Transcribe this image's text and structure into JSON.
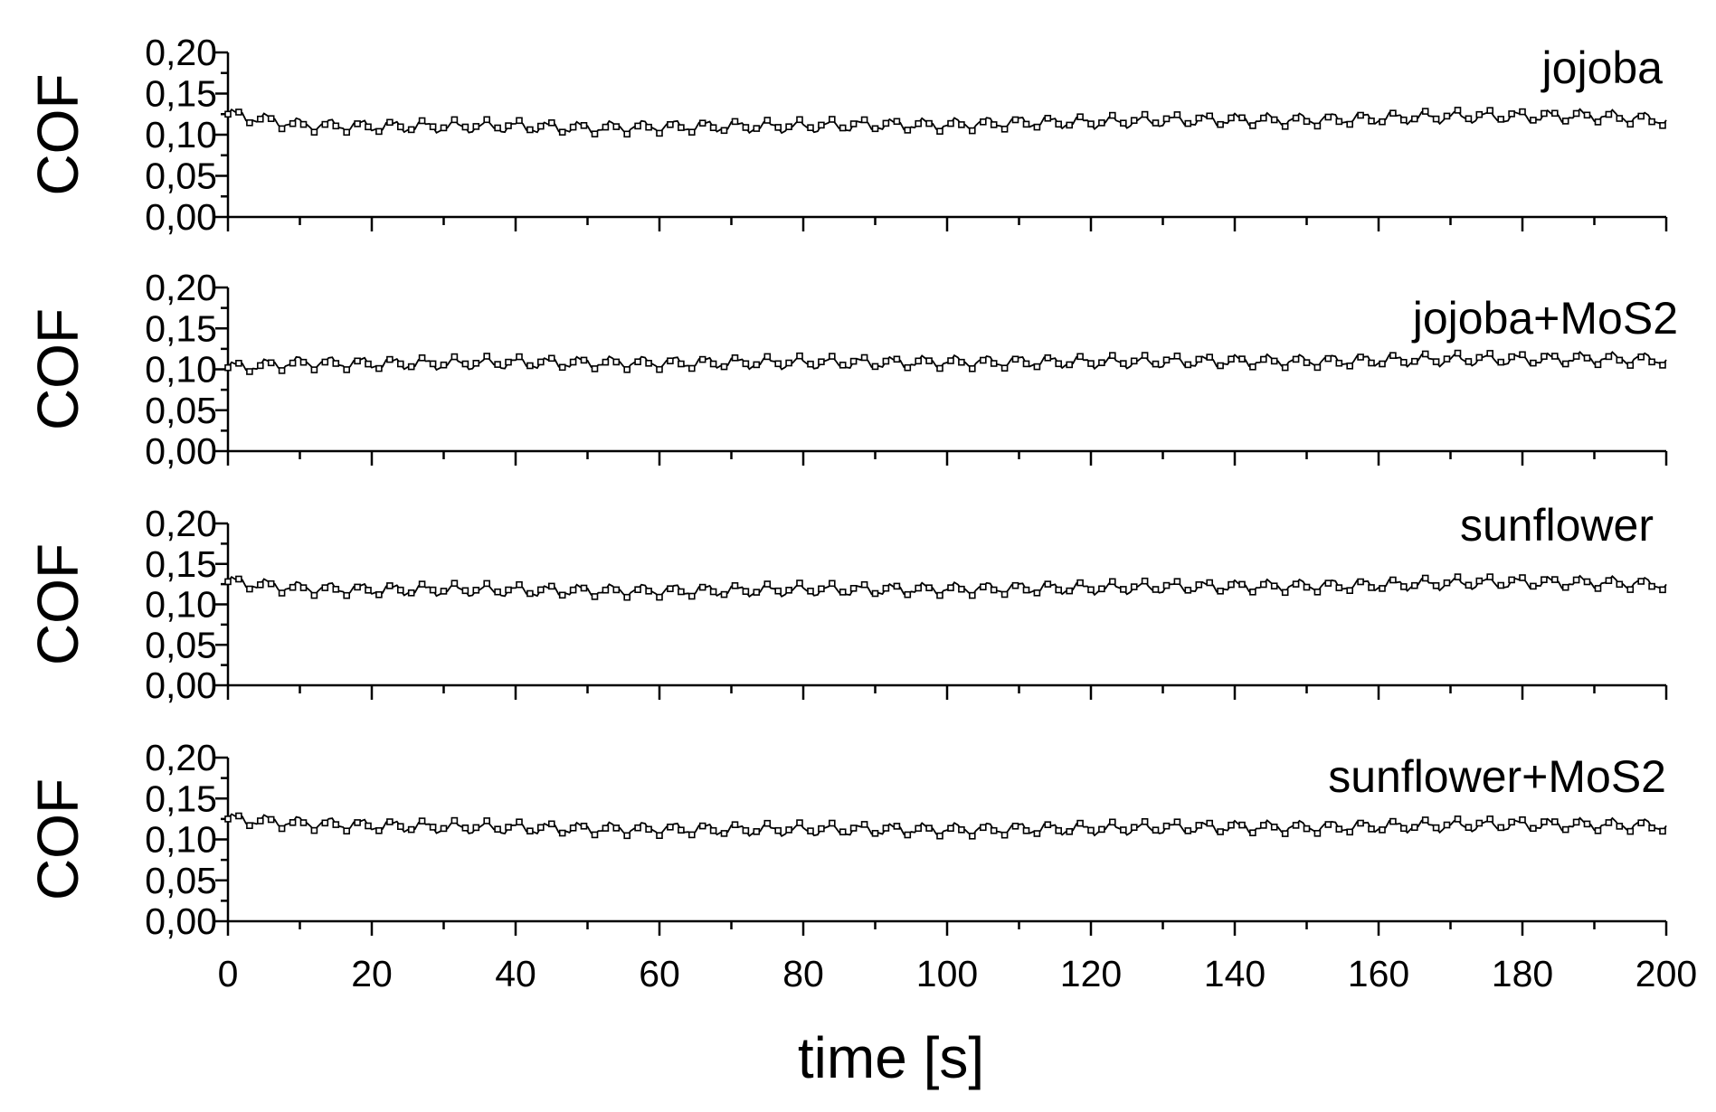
{
  "chart_data": [
    {
      "type": "line",
      "title": "jojoba",
      "ylabel": "COF",
      "xlabel": "",
      "xlim": [
        0,
        200
      ],
      "ylim": [
        0.0,
        0.2
      ],
      "yticks": [
        "0,00",
        "0,05",
        "0,10",
        "0,15",
        "0,20"
      ],
      "series": [
        {
          "name": "jojoba",
          "x": [
            0,
            10,
            20,
            30,
            40,
            50,
            60,
            70,
            80,
            90,
            100,
            110,
            120,
            130,
            140,
            150,
            160,
            170,
            180,
            190,
            200
          ],
          "y": [
            0.125,
            0.112,
            0.11,
            0.11,
            0.11,
            0.108,
            0.11,
            0.11,
            0.11,
            0.112,
            0.112,
            0.115,
            0.115,
            0.117,
            0.118,
            0.118,
            0.12,
            0.122,
            0.122,
            0.123,
            0.118
          ]
        }
      ]
    },
    {
      "type": "line",
      "title": "jojoba+MoS2",
      "ylabel": "COF",
      "xlabel": "",
      "xlim": [
        0,
        200
      ],
      "ylim": [
        0.0,
        0.2
      ],
      "yticks": [
        "0,00",
        "0,05",
        "0,10",
        "0,15",
        "0,20"
      ],
      "series": [
        {
          "name": "jojoba+MoS2",
          "x": [
            0,
            10,
            20,
            30,
            40,
            50,
            60,
            70,
            80,
            90,
            100,
            110,
            120,
            130,
            140,
            150,
            160,
            170,
            180,
            190,
            200
          ],
          "y": [
            0.102,
            0.108,
            0.107,
            0.107,
            0.108,
            0.108,
            0.108,
            0.108,
            0.108,
            0.108,
            0.109,
            0.109,
            0.109,
            0.109,
            0.11,
            0.11,
            0.111,
            0.112,
            0.112,
            0.113,
            0.112
          ]
        }
      ]
    },
    {
      "type": "line",
      "title": "sunflower",
      "ylabel": "COF",
      "xlabel": "",
      "xlim": [
        0,
        200
      ],
      "ylim": [
        0.0,
        0.2
      ],
      "yticks": [
        "0,00",
        "0,05",
        "0,10",
        "0,15",
        "0,20"
      ],
      "series": [
        {
          "name": "sunflower",
          "x": [
            0,
            10,
            20,
            30,
            40,
            50,
            60,
            70,
            80,
            90,
            100,
            110,
            120,
            130,
            140,
            150,
            160,
            170,
            180,
            190,
            200
          ],
          "y": [
            0.128,
            0.12,
            0.118,
            0.118,
            0.117,
            0.117,
            0.117,
            0.117,
            0.118,
            0.118,
            0.119,
            0.12,
            0.12,
            0.121,
            0.122,
            0.123,
            0.124,
            0.126,
            0.127,
            0.127,
            0.125
          ]
        }
      ]
    },
    {
      "type": "line",
      "title": "sunflower+MoS2",
      "ylabel": "COF",
      "xlabel": "time [s]",
      "xlim": [
        0,
        200
      ],
      "ylim": [
        0.0,
        0.2
      ],
      "xticks": [
        "0",
        "20",
        "40",
        "60",
        "80",
        "100",
        "120",
        "140",
        "160",
        "180",
        "200"
      ],
      "yticks": [
        "0,00",
        "0,05",
        "0,10",
        "0,15",
        "0,20"
      ],
      "series": [
        {
          "name": "sunflower+MoS2",
          "x": [
            0,
            10,
            20,
            30,
            40,
            50,
            60,
            70,
            80,
            90,
            100,
            110,
            120,
            130,
            140,
            150,
            160,
            170,
            180,
            190,
            200
          ],
          "y": [
            0.125,
            0.12,
            0.117,
            0.115,
            0.114,
            0.113,
            0.113,
            0.112,
            0.112,
            0.112,
            0.112,
            0.113,
            0.113,
            0.114,
            0.115,
            0.115,
            0.116,
            0.117,
            0.118,
            0.118,
            0.117
          ]
        }
      ]
    }
  ]
}
